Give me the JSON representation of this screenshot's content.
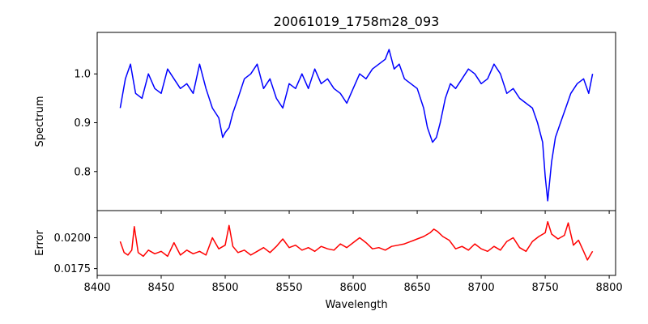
{
  "figure": {
    "title": "20061019_1758m28_093"
  },
  "chart_data": [
    {
      "type": "line",
      "panel": "top",
      "title": "20061019_1758m28_093",
      "xlabel": "",
      "ylabel": "Spectrum",
      "xlim": [
        8400,
        8805
      ],
      "ylim": [
        0.72,
        1.085
      ],
      "xticks": [
        8400,
        8450,
        8500,
        8550,
        8600,
        8650,
        8700,
        8750,
        8800
      ],
      "yticks": [
        0.8,
        0.9,
        1.0
      ],
      "ytick_labels": [
        "0.8",
        "0.9",
        "1.0"
      ],
      "grid": false,
      "series": [
        {
          "color": "#0000ff",
          "x": [
            8418,
            8422,
            8426,
            8430,
            8435,
            8440,
            8445,
            8450,
            8455,
            8460,
            8465,
            8470,
            8475,
            8480,
            8485,
            8490,
            8495,
            8498,
            8500,
            8503,
            8506,
            8510,
            8515,
            8520,
            8525,
            8530,
            8535,
            8540,
            8545,
            8550,
            8555,
            8560,
            8565,
            8570,
            8575,
            8580,
            8585,
            8590,
            8595,
            8600,
            8605,
            8610,
            8615,
            8620,
            8625,
            8628,
            8632,
            8636,
            8640,
            8645,
            8650,
            8655,
            8658,
            8662,
            8665,
            8668,
            8672,
            8676,
            8680,
            8685,
            8690,
            8695,
            8700,
            8705,
            8710,
            8715,
            8720,
            8725,
            8730,
            8735,
            8740,
            8744,
            8748,
            8750,
            8752,
            8755,
            8758,
            8762,
            8766,
            8770,
            8775,
            8780,
            8784,
            8787
          ],
          "y": [
            0.93,
            0.99,
            1.02,
            0.96,
            0.95,
            1.0,
            0.97,
            0.96,
            1.01,
            0.99,
            0.97,
            0.98,
            0.96,
            1.02,
            0.97,
            0.93,
            0.91,
            0.87,
            0.88,
            0.89,
            0.92,
            0.95,
            0.99,
            1.0,
            1.02,
            0.97,
            0.99,
            0.95,
            0.93,
            0.98,
            0.97,
            1.0,
            0.97,
            1.01,
            0.98,
            0.99,
            0.97,
            0.96,
            0.94,
            0.97,
            1.0,
            0.99,
            1.01,
            1.02,
            1.03,
            1.05,
            1.01,
            1.02,
            0.99,
            0.98,
            0.97,
            0.93,
            0.89,
            0.86,
            0.87,
            0.9,
            0.95,
            0.98,
            0.97,
            0.99,
            1.01,
            1.0,
            0.98,
            0.99,
            1.02,
            1.0,
            0.96,
            0.97,
            0.95,
            0.94,
            0.93,
            0.9,
            0.86,
            0.79,
            0.74,
            0.82,
            0.87,
            0.9,
            0.93,
            0.96,
            0.98,
            0.99,
            0.96,
            1.0
          ]
        }
      ]
    },
    {
      "type": "line",
      "panel": "bottom",
      "xlabel": "Wavelength",
      "ylabel": "Error",
      "xlim": [
        8400,
        8805
      ],
      "ylim": [
        0.01695,
        0.0222
      ],
      "xticks": [
        8400,
        8450,
        8500,
        8550,
        8600,
        8650,
        8700,
        8750,
        8800
      ],
      "xtick_labels": [
        "8400",
        "8450",
        "8500",
        "8550",
        "8600",
        "8650",
        "8700",
        "8750",
        "8800"
      ],
      "yticks": [
        0.0175,
        0.02
      ],
      "ytick_labels": [
        "0.0175",
        "0.0200"
      ],
      "grid": false,
      "series": [
        {
          "color": "#ff0000",
          "x": [
            8418,
            8421,
            8424,
            8427,
            8429,
            8432,
            8436,
            8440,
            8445,
            8450,
            8455,
            8460,
            8465,
            8470,
            8475,
            8480,
            8485,
            8490,
            8495,
            8500,
            8503,
            8506,
            8510,
            8515,
            8520,
            8525,
            8530,
            8535,
            8540,
            8545,
            8550,
            8555,
            8560,
            8565,
            8570,
            8575,
            8580,
            8585,
            8590,
            8595,
            8600,
            8605,
            8610,
            8615,
            8620,
            8625,
            8630,
            8635,
            8640,
            8645,
            8650,
            8655,
            8660,
            8663,
            8666,
            8670,
            8675,
            8680,
            8685,
            8690,
            8695,
            8700,
            8705,
            8710,
            8715,
            8720,
            8725,
            8730,
            8735,
            8740,
            8745,
            8750,
            8752,
            8755,
            8760,
            8765,
            8768,
            8772,
            8776,
            8780,
            8783,
            8787
          ],
          "y": [
            0.0197,
            0.0188,
            0.0186,
            0.019,
            0.0209,
            0.0188,
            0.0185,
            0.019,
            0.0187,
            0.0189,
            0.0185,
            0.0196,
            0.0186,
            0.019,
            0.0187,
            0.0189,
            0.0186,
            0.02,
            0.0191,
            0.0194,
            0.021,
            0.0193,
            0.0188,
            0.019,
            0.0186,
            0.0189,
            0.0192,
            0.0188,
            0.0193,
            0.0199,
            0.0192,
            0.0194,
            0.019,
            0.0192,
            0.0189,
            0.0193,
            0.0191,
            0.019,
            0.0195,
            0.0192,
            0.0196,
            0.02,
            0.0196,
            0.0191,
            0.0192,
            0.019,
            0.0193,
            0.0194,
            0.0195,
            0.0197,
            0.0199,
            0.0201,
            0.0204,
            0.0207,
            0.0205,
            0.0201,
            0.0198,
            0.0191,
            0.0193,
            0.019,
            0.0195,
            0.0191,
            0.0189,
            0.0193,
            0.019,
            0.0197,
            0.02,
            0.0192,
            0.0189,
            0.0197,
            0.0201,
            0.0204,
            0.0213,
            0.0203,
            0.0199,
            0.0202,
            0.0212,
            0.0194,
            0.0198,
            0.0189,
            0.0182,
            0.0189
          ]
        }
      ]
    }
  ]
}
